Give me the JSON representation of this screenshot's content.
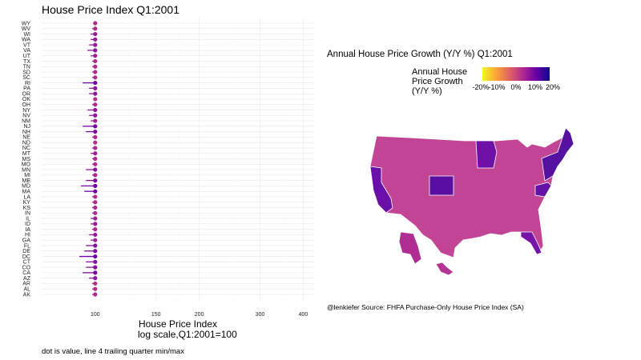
{
  "chart_data": [
    {
      "type": "scatter",
      "title": "House Price Index Q1:2001",
      "xlabel": [
        "House Price Index",
        "log scale,Q1:2001=100"
      ],
      "x_scale": "log",
      "xlim": [
        70,
        430
      ],
      "x_ticks": [
        100,
        150,
        200,
        300,
        400
      ],
      "grid": true,
      "caption": "dot is value, line 4 trailing quarter min/max",
      "states": [
        "AK",
        "AL",
        "AR",
        "AZ",
        "CA",
        "CO",
        "CT",
        "DC",
        "DE",
        "FL",
        "GA",
        "HI",
        "IA",
        "ID",
        "IL",
        "IN",
        "KS",
        "KY",
        "LA",
        "MA",
        "MD",
        "ME",
        "MI",
        "MN",
        "MO",
        "MS",
        "MT",
        "NC",
        "ND",
        "NE",
        "NH",
        "NJ",
        "NM",
        "NV",
        "NY",
        "OH",
        "OK",
        "OR",
        "PA",
        "RI",
        "SC",
        "SD",
        "TN",
        "TX",
        "UT",
        "VA",
        "VT",
        "WA",
        "WI",
        "WV",
        "WY"
      ],
      "values": [
        100,
        100,
        100,
        100,
        100,
        100,
        100,
        100,
        100,
        100,
        100,
        100,
        100,
        100,
        100,
        100,
        100,
        100,
        100,
        100,
        100,
        100,
        100,
        100,
        100,
        100,
        100,
        100,
        100,
        100,
        100,
        100,
        100,
        100,
        100,
        100,
        100,
        100,
        100,
        100,
        100,
        100,
        100,
        100,
        100,
        100,
        100,
        100,
        100,
        100,
        100
      ],
      "min4": [
        98,
        98,
        98,
        96,
        92,
        94,
        94,
        90,
        93,
        94,
        97,
        96,
        98,
        97,
        97,
        98,
        98,
        98,
        98,
        93,
        91,
        94,
        98,
        94,
        98,
        98,
        97,
        98,
        99,
        98,
        94,
        92,
        97,
        96,
        95,
        98,
        99,
        96,
        96,
        92,
        98,
        98,
        98,
        98,
        97,
        95,
        96,
        97,
        97,
        98,
        99
      ],
      "growth_pct": [
        5,
        4,
        4,
        10,
        13,
        11,
        11,
        15,
        12,
        11,
        7,
        9,
        5,
        8,
        8,
        5,
        5,
        5,
        5,
        14,
        14,
        12,
        6,
        11,
        5,
        5,
        8,
        6,
        4,
        5,
        12,
        14,
        7,
        9,
        10,
        5,
        4,
        10,
        10,
        14,
        5,
        5,
        5,
        5,
        8,
        10,
        9,
        8,
        9,
        5,
        5
      ]
    },
    {
      "type": "heatmap",
      "subtype": "choropleth",
      "title": "Annual House Price Growth (Y/Y %) Q1:2001",
      "legend_title": [
        "Annual House",
        "Price Growth",
        "(Y/Y %)"
      ],
      "legend_ticks": [
        "-20%",
        "-10%",
        "0%",
        "10%",
        "20%"
      ],
      "legend_range": [
        -25,
        25
      ],
      "colorscale": [
        "#f0f921",
        "#fca636",
        "#e16462",
        "#b12a90",
        "#6a00a8",
        "#0d0887"
      ],
      "source": "@lenkiefer Source: FHFA Purchase-Only House Price Index (SA)"
    }
  ]
}
